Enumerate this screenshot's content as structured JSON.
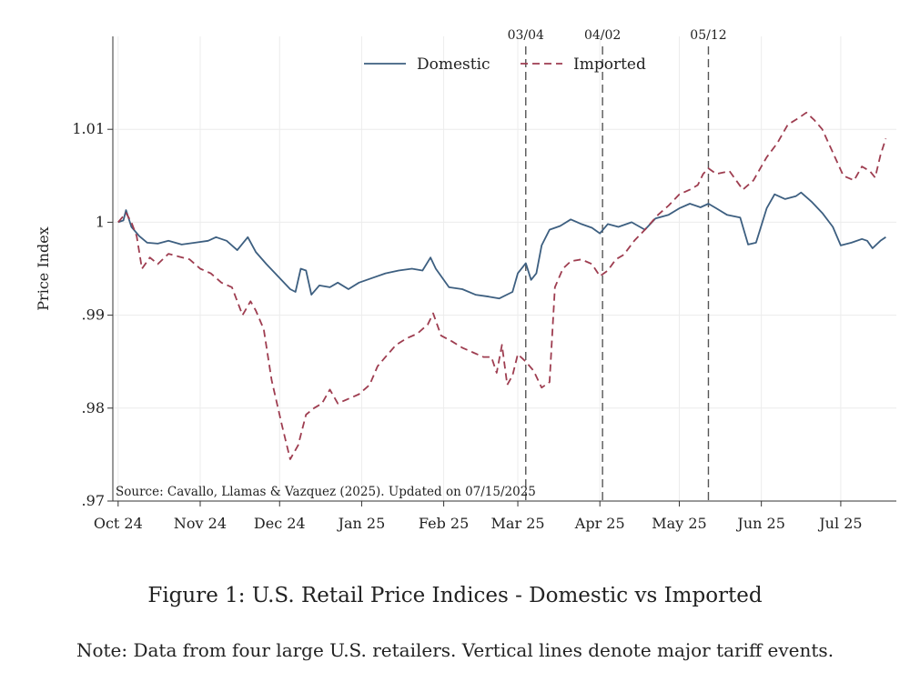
{
  "chart_data": {
    "type": "line",
    "ylabel": "Price Index",
    "xlabel": "",
    "ylim": [
      0.97,
      1.02
    ],
    "yticks": [
      {
        "value": 0.97,
        "label": ".97"
      },
      {
        "value": 0.98,
        "label": ".98"
      },
      {
        "value": 0.99,
        "label": ".99"
      },
      {
        "value": 1.0,
        "label": "1"
      },
      {
        "value": 1.01,
        "label": "1.01"
      }
    ],
    "xlim": [
      "2024-09-29",
      "2025-07-22"
    ],
    "xticks": [
      {
        "date": "2024-10-01",
        "label": "Oct 24"
      },
      {
        "date": "2024-11-01",
        "label": "Nov 24"
      },
      {
        "date": "2024-12-01",
        "label": "Dec 24"
      },
      {
        "date": "2025-01-01",
        "label": "Jan 25"
      },
      {
        "date": "2025-02-01",
        "label": "Feb 25"
      },
      {
        "date": "2025-03-01",
        "label": "Mar 25"
      },
      {
        "date": "2025-04-01",
        "label": "Apr 25"
      },
      {
        "date": "2025-05-01",
        "label": "May 25"
      },
      {
        "date": "2025-06-01",
        "label": "Jun 25"
      },
      {
        "date": "2025-07-01",
        "label": "Jul 25"
      }
    ],
    "grid": true,
    "legend_position": "top-center",
    "vertical_lines": [
      {
        "date": "2025-03-04",
        "label": "03/04"
      },
      {
        "date": "2025-04-02",
        "label": "04/02"
      },
      {
        "date": "2025-05-12",
        "label": "05/12"
      }
    ],
    "annotation": "Source: Cavallo, Llamas & Vazquez (2025). Updated on 07/15/2025",
    "series": [
      {
        "name": "Domestic",
        "color": "#3d5f80",
        "style": "solid",
        "points": [
          [
            "2024-10-01",
            1.0
          ],
          [
            "2024-10-03",
            1.0002
          ],
          [
            "2024-10-04",
            1.0013
          ],
          [
            "2024-10-06",
            0.9995
          ],
          [
            "2024-10-09",
            0.9985
          ],
          [
            "2024-10-12",
            0.9978
          ],
          [
            "2024-10-16",
            0.9977
          ],
          [
            "2024-10-20",
            0.998
          ],
          [
            "2024-10-25",
            0.9976
          ],
          [
            "2024-10-30",
            0.9978
          ],
          [
            "2024-11-04",
            0.998
          ],
          [
            "2024-11-07",
            0.9984
          ],
          [
            "2024-11-11",
            0.998
          ],
          [
            "2024-11-15",
            0.997
          ],
          [
            "2024-11-17",
            0.9977
          ],
          [
            "2024-11-19",
            0.9984
          ],
          [
            "2024-11-22",
            0.9968
          ],
          [
            "2024-11-26",
            0.9955
          ],
          [
            "2024-12-01",
            0.994
          ],
          [
            "2024-12-05",
            0.9928
          ],
          [
            "2024-12-07",
            0.9925
          ],
          [
            "2024-12-09",
            0.995
          ],
          [
            "2024-12-11",
            0.9948
          ],
          [
            "2024-12-13",
            0.9922
          ],
          [
            "2024-12-16",
            0.9932
          ],
          [
            "2024-12-20",
            0.993
          ],
          [
            "2024-12-23",
            0.9935
          ],
          [
            "2024-12-27",
            0.9928
          ],
          [
            "2024-12-31",
            0.9935
          ],
          [
            "2025-01-05",
            0.994
          ],
          [
            "2025-01-10",
            0.9945
          ],
          [
            "2025-01-15",
            0.9948
          ],
          [
            "2025-01-20",
            0.995
          ],
          [
            "2025-01-24",
            0.9948
          ],
          [
            "2025-01-27",
            0.9962
          ],
          [
            "2025-01-29",
            0.995
          ],
          [
            "2025-02-03",
            0.993
          ],
          [
            "2025-02-08",
            0.9928
          ],
          [
            "2025-02-13",
            0.9922
          ],
          [
            "2025-02-18",
            0.992
          ],
          [
            "2025-02-22",
            0.9918
          ],
          [
            "2025-02-27",
            0.9925
          ],
          [
            "2025-03-01",
            0.9945
          ],
          [
            "2025-03-04",
            0.9956
          ],
          [
            "2025-03-06",
            0.9938
          ],
          [
            "2025-03-08",
            0.9945
          ],
          [
            "2025-03-10",
            0.9975
          ],
          [
            "2025-03-13",
            0.9992
          ],
          [
            "2025-03-17",
            0.9996
          ],
          [
            "2025-03-21",
            1.0003
          ],
          [
            "2025-03-25",
            0.9998
          ],
          [
            "2025-03-29",
            0.9994
          ],
          [
            "2025-04-01",
            0.9988
          ],
          [
            "2025-04-04",
            0.9998
          ],
          [
            "2025-04-08",
            0.9995
          ],
          [
            "2025-04-13",
            1.0
          ],
          [
            "2025-04-18",
            0.9992
          ],
          [
            "2025-04-22",
            1.0004
          ],
          [
            "2025-04-27",
            1.0008
          ],
          [
            "2025-05-01",
            1.0015
          ],
          [
            "2025-05-05",
            1.002
          ],
          [
            "2025-05-09",
            1.0016
          ],
          [
            "2025-05-12",
            1.002
          ],
          [
            "2025-05-15",
            1.0015
          ],
          [
            "2025-05-19",
            1.0008
          ],
          [
            "2025-05-24",
            1.0005
          ],
          [
            "2025-05-27",
            0.9976
          ],
          [
            "2025-05-30",
            0.9978
          ],
          [
            "2025-06-03",
            1.0015
          ],
          [
            "2025-06-06",
            1.003
          ],
          [
            "2025-06-10",
            1.0025
          ],
          [
            "2025-06-14",
            1.0028
          ],
          [
            "2025-06-16",
            1.0032
          ],
          [
            "2025-06-20",
            1.0022
          ],
          [
            "2025-06-24",
            1.001
          ],
          [
            "2025-06-28",
            0.9995
          ],
          [
            "2025-07-01",
            0.9975
          ],
          [
            "2025-07-05",
            0.9978
          ],
          [
            "2025-07-09",
            0.9982
          ],
          [
            "2025-07-11",
            0.998
          ],
          [
            "2025-07-13",
            0.9972
          ],
          [
            "2025-07-16",
            0.998
          ],
          [
            "2025-07-18",
            0.9984
          ]
        ]
      },
      {
        "name": "Imported",
        "color": "#9e3d50",
        "style": "dashed",
        "points": [
          [
            "2024-10-01",
            1.0
          ],
          [
            "2024-10-04",
            1.001
          ],
          [
            "2024-10-06",
            1.0
          ],
          [
            "2024-10-08",
            0.9985
          ],
          [
            "2024-10-10",
            0.995
          ],
          [
            "2024-10-13",
            0.9962
          ],
          [
            "2024-10-16",
            0.9955
          ],
          [
            "2024-10-20",
            0.9966
          ],
          [
            "2024-10-24",
            0.9963
          ],
          [
            "2024-10-28",
            0.996
          ],
          [
            "2024-11-01",
            0.995
          ],
          [
            "2024-11-05",
            0.9945
          ],
          [
            "2024-11-09",
            0.9935
          ],
          [
            "2024-11-13",
            0.993
          ],
          [
            "2024-11-17",
            0.99
          ],
          [
            "2024-11-20",
            0.9915
          ],
          [
            "2024-11-22",
            0.9905
          ],
          [
            "2024-11-25",
            0.9885
          ],
          [
            "2024-11-28",
            0.983
          ],
          [
            "2024-12-02",
            0.978
          ],
          [
            "2024-12-05",
            0.9745
          ],
          [
            "2024-12-08",
            0.976
          ],
          [
            "2024-12-11",
            0.9793
          ],
          [
            "2024-12-14",
            0.98
          ],
          [
            "2024-12-17",
            0.9805
          ],
          [
            "2024-12-20",
            0.982
          ],
          [
            "2024-12-23",
            0.9805
          ],
          [
            "2024-12-27",
            0.981
          ],
          [
            "2024-12-31",
            0.9815
          ],
          [
            "2025-01-04",
            0.9825
          ],
          [
            "2025-01-07",
            0.9845
          ],
          [
            "2025-01-10",
            0.9855
          ],
          [
            "2025-01-14",
            0.9868
          ],
          [
            "2025-01-18",
            0.9875
          ],
          [
            "2025-01-22",
            0.988
          ],
          [
            "2025-01-26",
            0.989
          ],
          [
            "2025-01-28",
            0.9902
          ],
          [
            "2025-01-31",
            0.9878
          ],
          [
            "2025-02-04",
            0.9872
          ],
          [
            "2025-02-08",
            0.9865
          ],
          [
            "2025-02-12",
            0.986
          ],
          [
            "2025-02-16",
            0.9855
          ],
          [
            "2025-02-19",
            0.9855
          ],
          [
            "2025-02-21",
            0.9838
          ],
          [
            "2025-02-23",
            0.9868
          ],
          [
            "2025-02-25",
            0.9825
          ],
          [
            "2025-02-27",
            0.9835
          ],
          [
            "2025-03-01",
            0.9858
          ],
          [
            "2025-03-04",
            0.985
          ],
          [
            "2025-03-07",
            0.984
          ],
          [
            "2025-03-10",
            0.9822
          ],
          [
            "2025-03-13",
            0.9828
          ],
          [
            "2025-03-15",
            0.993
          ],
          [
            "2025-03-18",
            0.995
          ],
          [
            "2025-03-21",
            0.9958
          ],
          [
            "2025-03-25",
            0.996
          ],
          [
            "2025-03-29",
            0.9955
          ],
          [
            "2025-04-01",
            0.9942
          ],
          [
            "2025-04-04",
            0.9948
          ],
          [
            "2025-04-07",
            0.996
          ],
          [
            "2025-04-10",
            0.9965
          ],
          [
            "2025-04-14",
            0.998
          ],
          [
            "2025-04-18",
            0.9992
          ],
          [
            "2025-04-23",
            1.0008
          ],
          [
            "2025-04-27",
            1.0018
          ],
          [
            "2025-05-01",
            1.003
          ],
          [
            "2025-05-05",
            1.0035
          ],
          [
            "2025-05-08",
            1.004
          ],
          [
            "2025-05-10",
            1.0052
          ],
          [
            "2025-05-12",
            1.0058
          ],
          [
            "2025-05-15",
            1.0052
          ],
          [
            "2025-05-20",
            1.0055
          ],
          [
            "2025-05-25",
            1.0035
          ],
          [
            "2025-05-29",
            1.0045
          ],
          [
            "2025-06-03",
            1.007
          ],
          [
            "2025-06-07",
            1.0085
          ],
          [
            "2025-06-11",
            1.0105
          ],
          [
            "2025-06-15",
            1.0112
          ],
          [
            "2025-06-18",
            1.0118
          ],
          [
            "2025-06-21",
            1.011
          ],
          [
            "2025-06-24",
            1.01
          ],
          [
            "2025-06-28",
            1.0075
          ],
          [
            "2025-07-02",
            1.005
          ],
          [
            "2025-07-06",
            1.0045
          ],
          [
            "2025-07-09",
            1.006
          ],
          [
            "2025-07-12",
            1.0055
          ],
          [
            "2025-07-14",
            1.0048
          ],
          [
            "2025-07-16",
            1.0072
          ],
          [
            "2025-07-18",
            1.009
          ]
        ]
      }
    ]
  },
  "caption": "Figure 1: U.S. Retail Price Indices - Domestic vs Imported",
  "note": "Note: Data from four large U.S. retailers. Vertical lines denote major tariff events."
}
